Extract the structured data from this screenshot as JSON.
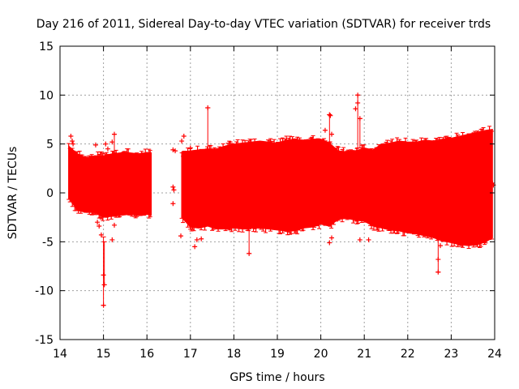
{
  "chart_data": {
    "type": "scatter",
    "title": "Day 216 of 2011, Sidereal Day-to-day VTEC variation (SDTVAR) for receiver trds",
    "xlabel": "GPS time / hours",
    "ylabel": "SDTVAR / TECUs",
    "xlim": [
      14,
      24
    ],
    "ylim": [
      -15,
      15
    ],
    "xticks": [
      14,
      15,
      16,
      17,
      18,
      19,
      20,
      21,
      22,
      23,
      24
    ],
    "yticks": [
      -15,
      -10,
      -5,
      0,
      5,
      10,
      15
    ],
    "grid": true,
    "color": "#ff0000",
    "series": [
      {
        "name": "SDTVAR envelope (min/max error bars)",
        "segments": [
          {
            "x": [
              14.2,
              14.4,
              14.6,
              14.8,
              15.0,
              15.2,
              15.4,
              15.6,
              15.8,
              16.0,
              16.1
            ],
            "upper": [
              4.8,
              4.0,
              3.6,
              3.8,
              3.8,
              4.0,
              4.1,
              4.1,
              4.0,
              4.1,
              4.1
            ],
            "lower": [
              -0.5,
              -1.8,
              -2.0,
              -2.0,
              -2.5,
              -2.4,
              -2.3,
              -2.2,
              -2.3,
              -2.2,
              -2.3
            ]
          },
          {
            "x": [
              16.8,
              17.0,
              17.2,
              17.4,
              17.6,
              17.8,
              18.0,
              18.2,
              18.4,
              18.6,
              18.8,
              19.0,
              19.2,
              19.4,
              19.6,
              19.8,
              20.0,
              20.2,
              20.4,
              20.6,
              20.8,
              21.0,
              21.2,
              21.4,
              21.6,
              21.8,
              22.0,
              22.2,
              22.4,
              22.6,
              22.8,
              23.0,
              23.2,
              23.4,
              23.6,
              23.8,
              23.95
            ],
            "upper": [
              4.2,
              4.3,
              4.4,
              4.5,
              4.5,
              4.8,
              5.0,
              5.1,
              5.2,
              5.3,
              5.2,
              5.1,
              5.4,
              5.5,
              5.4,
              5.5,
              5.5,
              5.1,
              4.3,
              4.2,
              4.3,
              4.6,
              4.4,
              5.0,
              5.1,
              5.3,
              5.2,
              5.2,
              5.4,
              5.3,
              5.5,
              5.6,
              5.8,
              6.0,
              6.2,
              6.4,
              6.5
            ],
            "lower": [
              -2.5,
              -3.5,
              -3.6,
              -3.4,
              -3.7,
              -3.7,
              -3.6,
              -3.7,
              -3.6,
              -3.6,
              -3.7,
              -3.8,
              -3.9,
              -3.9,
              -3.6,
              -3.5,
              -3.2,
              -3.4,
              -2.7,
              -2.6,
              -2.8,
              -2.9,
              -3.4,
              -3.6,
              -3.8,
              -3.9,
              -4.1,
              -4.2,
              -4.4,
              -4.6,
              -4.9,
              -5.1,
              -5.3,
              -5.4,
              -5.3,
              -5.0,
              -4.6
            ]
          }
        ]
      },
      {
        "name": "outliers",
        "points": [
          {
            "x": 14.25,
            "y": 5.8
          },
          {
            "x": 14.28,
            "y": 5.3
          },
          {
            "x": 14.3,
            "y": 5.0
          },
          {
            "x": 14.3,
            "y": -0.2
          },
          {
            "x": 14.35,
            "y": -0.4
          },
          {
            "x": 14.82,
            "y": 4.9
          },
          {
            "x": 14.86,
            "y": -3.0
          },
          {
            "x": 14.9,
            "y": -3.4
          },
          {
            "x": 14.95,
            "y": -4.3
          },
          {
            "x": 15.0,
            "y": -8.4
          },
          {
            "x": 15.02,
            "y": -9.4
          },
          {
            "x": 15.0,
            "y": -11.5
          },
          {
            "x": 15.05,
            "y": 5.0
          },
          {
            "x": 15.1,
            "y": 4.5
          },
          {
            "x": 15.25,
            "y": 6.0
          },
          {
            "x": 15.25,
            "y": -3.3
          },
          {
            "x": 15.2,
            "y": 5.2
          },
          {
            "x": 15.2,
            "y": -4.8
          },
          {
            "x": 16.6,
            "y": 4.4
          },
          {
            "x": 16.65,
            "y": 4.3
          },
          {
            "x": 16.6,
            "y": 0.6
          },
          {
            "x": 16.6,
            "y": -1.1
          },
          {
            "x": 16.62,
            "y": 0.3
          },
          {
            "x": 16.8,
            "y": 5.3
          },
          {
            "x": 16.85,
            "y": 5.8
          },
          {
            "x": 16.78,
            "y": -4.4
          },
          {
            "x": 17.0,
            "y": 4.6
          },
          {
            "x": 17.1,
            "y": -5.5
          },
          {
            "x": 17.15,
            "y": -4.8
          },
          {
            "x": 17.4,
            "y": 8.7
          },
          {
            "x": 17.25,
            "y": -4.7
          },
          {
            "x": 18.35,
            "y": -6.2
          },
          {
            "x": 20.2,
            "y": 8.0
          },
          {
            "x": 20.22,
            "y": 7.9
          },
          {
            "x": 20.25,
            "y": 6.0
          },
          {
            "x": 20.1,
            "y": 6.4
          },
          {
            "x": 20.2,
            "y": -5.1
          },
          {
            "x": 20.25,
            "y": -4.6
          },
          {
            "x": 20.85,
            "y": 10.0
          },
          {
            "x": 20.85,
            "y": 9.2
          },
          {
            "x": 20.8,
            "y": 8.6
          },
          {
            "x": 20.9,
            "y": 7.6
          },
          {
            "x": 20.9,
            "y": -4.8
          },
          {
            "x": 21.1,
            "y": -4.8
          },
          {
            "x": 22.7,
            "y": -6.8
          },
          {
            "x": 22.7,
            "y": -8.1
          },
          {
            "x": 22.75,
            "y": -5.4
          },
          {
            "x": 23.95,
            "y": 1.0
          },
          {
            "x": 23.97,
            "y": 0.8
          }
        ]
      },
      {
        "name": "spikes",
        "ranges": [
          {
            "x": 15.0,
            "ymin": -11.5,
            "ymax": -4.5
          },
          {
            "x": 15.02,
            "ymin": -9.4,
            "ymax": -5.0
          },
          {
            "x": 15.25,
            "ymin": 4.1,
            "ymax": 6.0
          },
          {
            "x": 17.4,
            "ymin": 4.5,
            "ymax": 8.7
          },
          {
            "x": 18.35,
            "ymin": -6.2,
            "ymax": -3.7
          },
          {
            "x": 20.2,
            "ymin": 5.1,
            "ymax": 8.0
          },
          {
            "x": 20.85,
            "ymin": 4.6,
            "ymax": 10.0
          },
          {
            "x": 20.9,
            "ymin": 4.6,
            "ymax": 7.6
          },
          {
            "x": 22.7,
            "ymin": -8.1,
            "ymax": -4.6
          }
        ]
      }
    ]
  }
}
